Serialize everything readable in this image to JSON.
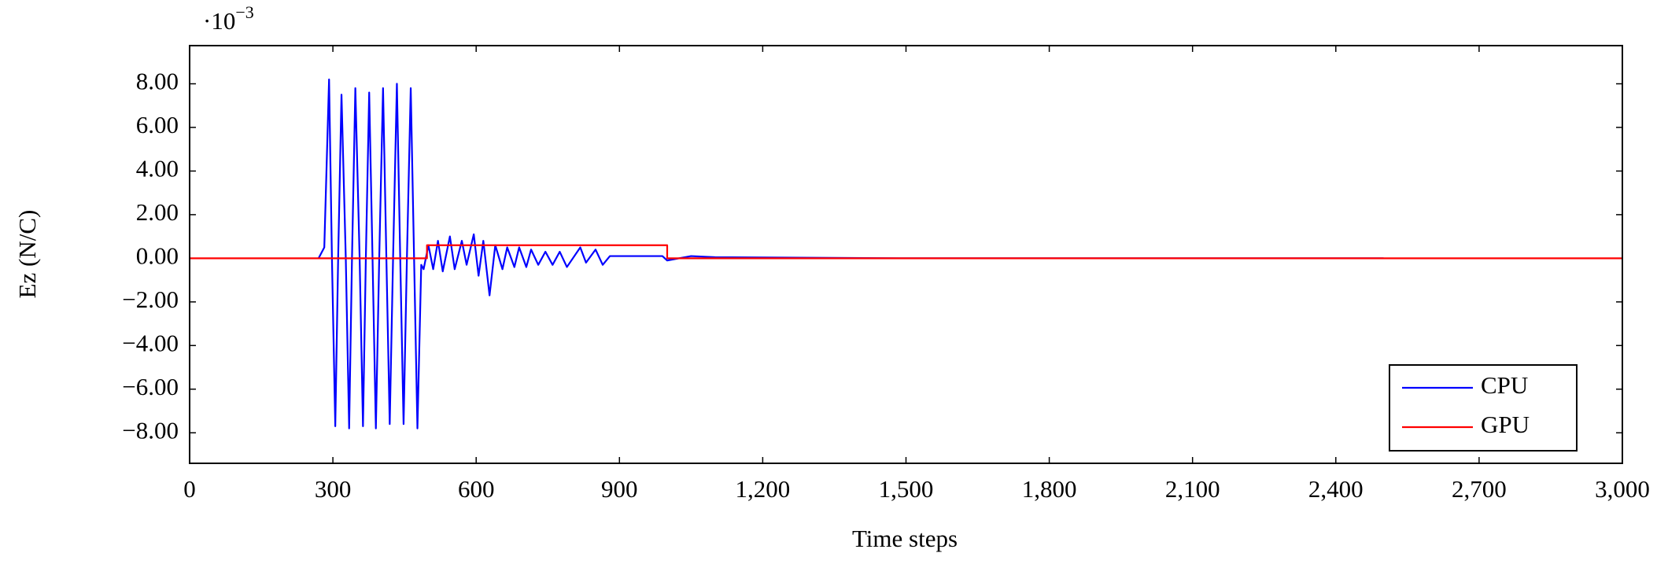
{
  "chart_data": {
    "type": "line",
    "x_label": "Time steps",
    "y_label": "Ez (N/C)",
    "y_multiplier": "·10",
    "y_multiplier_exp": "−3",
    "xlim": [
      0,
      3000
    ],
    "ylim": [
      -9.4,
      9.75
    ],
    "xticks": [
      0,
      300,
      600,
      900,
      {
        "value": 1200,
        "label": "1,200"
      },
      {
        "value": 1500,
        "label": "1,500"
      },
      {
        "value": 1800,
        "label": "1,800"
      },
      {
        "value": 2100,
        "label": "2,100"
      },
      {
        "value": 2400,
        "label": "2,400"
      },
      {
        "value": 2700,
        "label": "2,700"
      },
      {
        "value": 3000,
        "label": "3,000"
      }
    ],
    "yticks": [
      {
        "value": -8,
        "label": "−8.00"
      },
      {
        "value": -6,
        "label": "−6.00"
      },
      {
        "value": -4,
        "label": "−4.00"
      },
      {
        "value": -2,
        "label": "−2.00"
      },
      {
        "value": 0,
        "label": "0.00"
      },
      {
        "value": 2,
        "label": "2.00"
      },
      {
        "value": 4,
        "label": "4.00"
      },
      {
        "value": 6,
        "label": "6.00"
      },
      {
        "value": 8,
        "label": "8.00"
      }
    ],
    "legend_position": "lower right",
    "series": [
      {
        "name": "CPU",
        "color": "#0000ff",
        "x": [
          270,
          282,
          292,
          298,
          305,
          311,
          318,
          327,
          334,
          340,
          347,
          356,
          363,
          369,
          376,
          383,
          390,
          397,
          405,
          412,
          419,
          426,
          434,
          441,
          448,
          455,
          463,
          470,
          477,
          485,
          490,
          500,
          510,
          520,
          530,
          545,
          555,
          570,
          580,
          595,
          605,
          615,
          628,
          640,
          655,
          665,
          680,
          690,
          705,
          715,
          730,
          745,
          760,
          775,
          790,
          818,
          830,
          850,
          865,
          880,
          900,
          950,
          990,
          1000,
          1050,
          1100,
          1500,
          2500
        ],
        "values": [
          0,
          0.5,
          8.2,
          0,
          -7.7,
          0,
          7.5,
          0,
          -7.8,
          0,
          7.8,
          0,
          -7.7,
          0,
          7.6,
          0,
          -7.8,
          0,
          7.8,
          0,
          -7.6,
          0,
          8.0,
          0,
          -7.6,
          0,
          7.8,
          0,
          -7.8,
          -0.3,
          -0.5,
          0.6,
          -0.5,
          0.8,
          -0.6,
          1.0,
          -0.5,
          0.8,
          -0.3,
          1.1,
          -0.8,
          0.8,
          -1.7,
          0.6,
          -0.5,
          0.5,
          -0.4,
          0.5,
          -0.4,
          0.4,
          -0.3,
          0.3,
          -0.3,
          0.3,
          -0.4,
          0.5,
          -0.2,
          0.4,
          -0.3,
          0.1,
          0.1,
          0.1,
          0.1,
          -0.1,
          0.1,
          0.05,
          0,
          0
        ]
      },
      {
        "name": "GPU",
        "color": "#ff0000",
        "x": [
          0,
          497,
          497,
          1000,
          1000,
          3000
        ],
        "values": [
          0,
          0,
          0.6,
          0.6,
          0,
          0
        ]
      }
    ]
  }
}
